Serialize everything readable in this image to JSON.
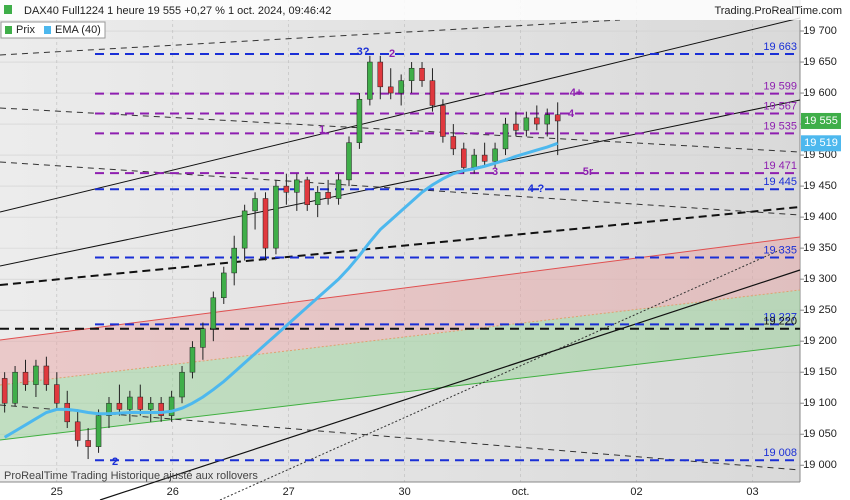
{
  "chart_data": {
    "type": "candlestick",
    "title": "DAX40 Full1224 1 heure 19 555 +0,27 % 1 oct. 2024, 09:46:42",
    "source": "Trading.ProRealTime.com",
    "footer": "ProRealTime Trading  Historique ajusté aux rollovers",
    "price_name": "Prix",
    "up_color": "#3fae49",
    "down_color": "#e0393e",
    "x": [
      -0.45,
      -0.36,
      -0.27,
      -0.18,
      -0.09,
      0,
      0.09,
      0.18,
      0.27,
      0.36,
      0.45,
      0.54,
      0.63,
      0.72,
      0.81,
      0.9,
      0.99,
      1.08,
      1.17,
      1.26,
      1.35,
      1.44,
      1.53,
      1.62,
      1.71,
      1.8,
      1.89,
      1.98,
      2.07,
      2.16,
      2.25,
      2.34,
      2.43,
      2.52,
      2.61,
      2.7,
      2.79,
      2.88,
      2.97,
      3.06,
      3.15,
      3.24,
      3.33,
      3.42,
      3.51,
      3.6,
      3.69,
      3.78,
      3.87,
      3.96,
      4.05,
      4.14,
      4.23,
      4.32
    ],
    "open": [
      19140,
      19100,
      19150,
      19130,
      19160,
      19130,
      19100,
      19070,
      19040,
      19030,
      19080,
      19100,
      19090,
      19110,
      19090,
      19100,
      19080,
      19110,
      19150,
      19190,
      19220,
      19270,
      19310,
      19350,
      19410,
      19430,
      19350,
      19450,
      19440,
      19460,
      19420,
      19440,
      19430,
      19460,
      19520,
      19590,
      19650,
      19610,
      19600,
      19620,
      19640,
      19620,
      19580,
      19530,
      19510,
      19480,
      19500,
      19490,
      19510,
      19550,
      19540,
      19560,
      19550,
      19565
    ],
    "high": [
      19150,
      19160,
      19170,
      19170,
      19175,
      19150,
      19120,
      19090,
      19060,
      19090,
      19110,
      19130,
      19120,
      19130,
      19110,
      19110,
      19120,
      19160,
      19200,
      19230,
      19280,
      19320,
      19370,
      19420,
      19440,
      19440,
      19460,
      19470,
      19470,
      19465,
      19450,
      19460,
      19470,
      19530,
      19600,
      19660,
      19660,
      19640,
      19630,
      19650,
      19650,
      19640,
      19590,
      19550,
      19520,
      19510,
      19520,
      19520,
      19560,
      19570,
      19570,
      19580,
      19575,
      19585
    ],
    "low": [
      19085,
      19095,
      19120,
      19110,
      19120,
      19090,
      19060,
      19030,
      19010,
      19020,
      19060,
      19080,
      19070,
      19080,
      19070,
      19070,
      19070,
      19100,
      19140,
      19170,
      19200,
      19260,
      19290,
      19330,
      19380,
      19330,
      19340,
      19420,
      19410,
      19410,
      19400,
      19420,
      19420,
      19450,
      19510,
      19580,
      19590,
      19590,
      19580,
      19600,
      19610,
      19570,
      19520,
      19500,
      19470,
      19470,
      19480,
      19480,
      19500,
      19530,
      19530,
      19540,
      19530,
      19500
    ],
    "close": [
      19100,
      19150,
      19130,
      19160,
      19130,
      19100,
      19070,
      19040,
      19030,
      19080,
      19100,
      19090,
      19110,
      19090,
      19100,
      19080,
      19110,
      19150,
      19190,
      19220,
      19270,
      19310,
      19350,
      19410,
      19430,
      19350,
      19450,
      19440,
      19460,
      19420,
      19440,
      19430,
      19460,
      19520,
      19590,
      19650,
      19610,
      19600,
      19620,
      19640,
      19620,
      19580,
      19530,
      19510,
      19480,
      19500,
      19490,
      19510,
      19550,
      19540,
      19560,
      19550,
      19565,
      19555
    ],
    "ema": {
      "name": "EMA (40)",
      "color": "#4db8ee",
      "values": [
        19045,
        19055,
        19065,
        19075,
        19085,
        19090,
        19090,
        19088,
        19085,
        19083,
        19083,
        19084,
        19085,
        19085,
        19085,
        19085,
        19087,
        19092,
        19100,
        19110,
        19122,
        19135,
        19150,
        19165,
        19180,
        19195,
        19210,
        19225,
        19240,
        19255,
        19270,
        19285,
        19300,
        19318,
        19338,
        19360,
        19380,
        19395,
        19410,
        19425,
        19440,
        19452,
        19462,
        19470,
        19475,
        19478,
        19482,
        19487,
        19492,
        19498,
        19503,
        19508,
        19513,
        19519
      ]
    },
    "last_price": {
      "value": 19555,
      "label": "19 555",
      "color": "#3fae49"
    },
    "ema_last": {
      "value": 19519,
      "label": "19 519"
    },
    "xlim": [
      -0.49,
      6.41
    ],
    "xticks": [
      {
        "value": 0,
        "label": "25"
      },
      {
        "value": 1,
        "label": "26"
      },
      {
        "value": 2,
        "label": "27"
      },
      {
        "value": 3,
        "label": "30"
      },
      {
        "value": 4,
        "label": "oct."
      },
      {
        "value": 5,
        "label": "02"
      },
      {
        "value": 6,
        "label": "03"
      }
    ],
    "ylim": [
      18973,
      19750
    ],
    "yticks": [
      {
        "value": 19000,
        "label": "19 000"
      },
      {
        "value": 19050,
        "label": "19 050"
      },
      {
        "value": 19100,
        "label": "19 100"
      },
      {
        "value": 19150,
        "label": "19 150"
      },
      {
        "value": 19200,
        "label": "19 200"
      },
      {
        "value": 19250,
        "label": "19 250"
      },
      {
        "value": 19300,
        "label": "19 300"
      },
      {
        "value": 19350,
        "label": "19 350"
      },
      {
        "value": 19400,
        "label": "19 400"
      },
      {
        "value": 19450,
        "label": "19 450"
      },
      {
        "value": 19500,
        "label": "19 500"
      },
      {
        "value": 19550,
        "label": "19 550"
      },
      {
        "value": 19600,
        "label": "19 600"
      },
      {
        "value": 19650,
        "label": "19 650"
      },
      {
        "value": 19700,
        "label": "19 700"
      }
    ],
    "levels": [
      {
        "value": 19663,
        "label": "19 663",
        "color": "#1a2fd6"
      },
      {
        "value": 19599,
        "label": "19 599",
        "color": "#8e1fb0"
      },
      {
        "value": 19567,
        "label": "19 567",
        "color": "#8e1fb0"
      },
      {
        "value": 19535,
        "label": "19 535",
        "color": "#8e1fb0"
      },
      {
        "value": 19471,
        "label": "19 471",
        "color": "#8e1fb0"
      },
      {
        "value": 19445,
        "label": "19 445",
        "color": "#1a2fd6"
      },
      {
        "value": 19335,
        "label": "19 335",
        "color": "#1a2fd6"
      },
      {
        "value": 19227,
        "label": "19 227",
        "color": "#1a2fd6"
      },
      {
        "value": 19220,
        "label": "19 220",
        "color": "#111111"
      },
      {
        "value": 19008,
        "label": "19 008",
        "color": "#1a2fd6"
      }
    ],
    "annotations": [
      {
        "text": "3?",
        "color": "#1a2fd6"
      },
      {
        "text": "2",
        "color": "#8e1fb0"
      },
      {
        "text": "1",
        "color": "#8e1fb0"
      },
      {
        "text": "3",
        "color": "#8e1fb0"
      },
      {
        "text": "4+",
        "color": "#8e1fb0"
      },
      {
        "text": "4",
        "color": "#8e1fb0"
      },
      {
        "text": "5r",
        "color": "#8e1fb0"
      },
      {
        "text": "4-?",
        "color": "#1a2fd6"
      },
      {
        "text": "2",
        "color": "#1a2fd6"
      }
    ]
  }
}
